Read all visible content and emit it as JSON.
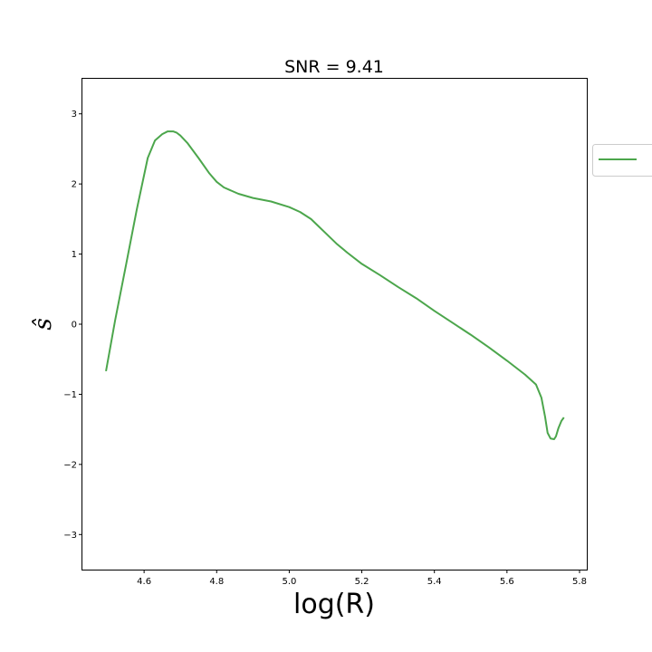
{
  "chart_data": {
    "type": "line",
    "title": "SNR = 9.41",
    "xlabel": "log(R)",
    "ylabel": "ŝ",
    "xlim": [
      4.43,
      5.82
    ],
    "ylim": [
      -3.5,
      3.5
    ],
    "xticks": [
      4.6,
      4.8,
      5.0,
      5.2,
      5.4,
      5.6,
      5.8
    ],
    "xtick_labels": [
      "4.6",
      "4.8",
      "5.0",
      "5.2",
      "5.4",
      "5.6",
      "5.8"
    ],
    "yticks": [
      -3,
      -2,
      -1,
      0,
      1,
      2,
      3
    ],
    "ytick_labels": [
      "−3",
      "−2",
      "−1",
      "0",
      "1",
      "2",
      "3"
    ],
    "grid": false,
    "legend": {
      "placement": "outside-right",
      "entries": [
        ""
      ]
    },
    "series": [
      {
        "color": "#4ca64c",
        "x": [
          4.495,
          4.52,
          4.55,
          4.58,
          4.61,
          4.63,
          4.65,
          4.665,
          4.68,
          4.69,
          4.7,
          4.72,
          4.75,
          4.78,
          4.8,
          4.82,
          4.86,
          4.9,
          4.95,
          5.0,
          5.03,
          5.06,
          5.08,
          5.1,
          5.13,
          5.16,
          5.2,
          5.25,
          5.3,
          5.35,
          5.4,
          5.45,
          5.5,
          5.55,
          5.6,
          5.65,
          5.68,
          5.695,
          5.705,
          5.712,
          5.72,
          5.73,
          5.735,
          5.742,
          5.75,
          5.757
        ],
        "y": [
          -0.67,
          0.05,
          0.84,
          1.64,
          2.37,
          2.62,
          2.71,
          2.75,
          2.75,
          2.73,
          2.69,
          2.58,
          2.37,
          2.15,
          2.03,
          1.95,
          1.86,
          1.8,
          1.75,
          1.67,
          1.6,
          1.5,
          1.4,
          1.3,
          1.15,
          1.02,
          0.86,
          0.7,
          0.53,
          0.37,
          0.19,
          0.02,
          -0.15,
          -0.33,
          -0.52,
          -0.72,
          -0.86,
          -1.05,
          -1.32,
          -1.55,
          -1.63,
          -1.64,
          -1.6,
          -1.48,
          -1.38,
          -1.33
        ]
      }
    ]
  }
}
